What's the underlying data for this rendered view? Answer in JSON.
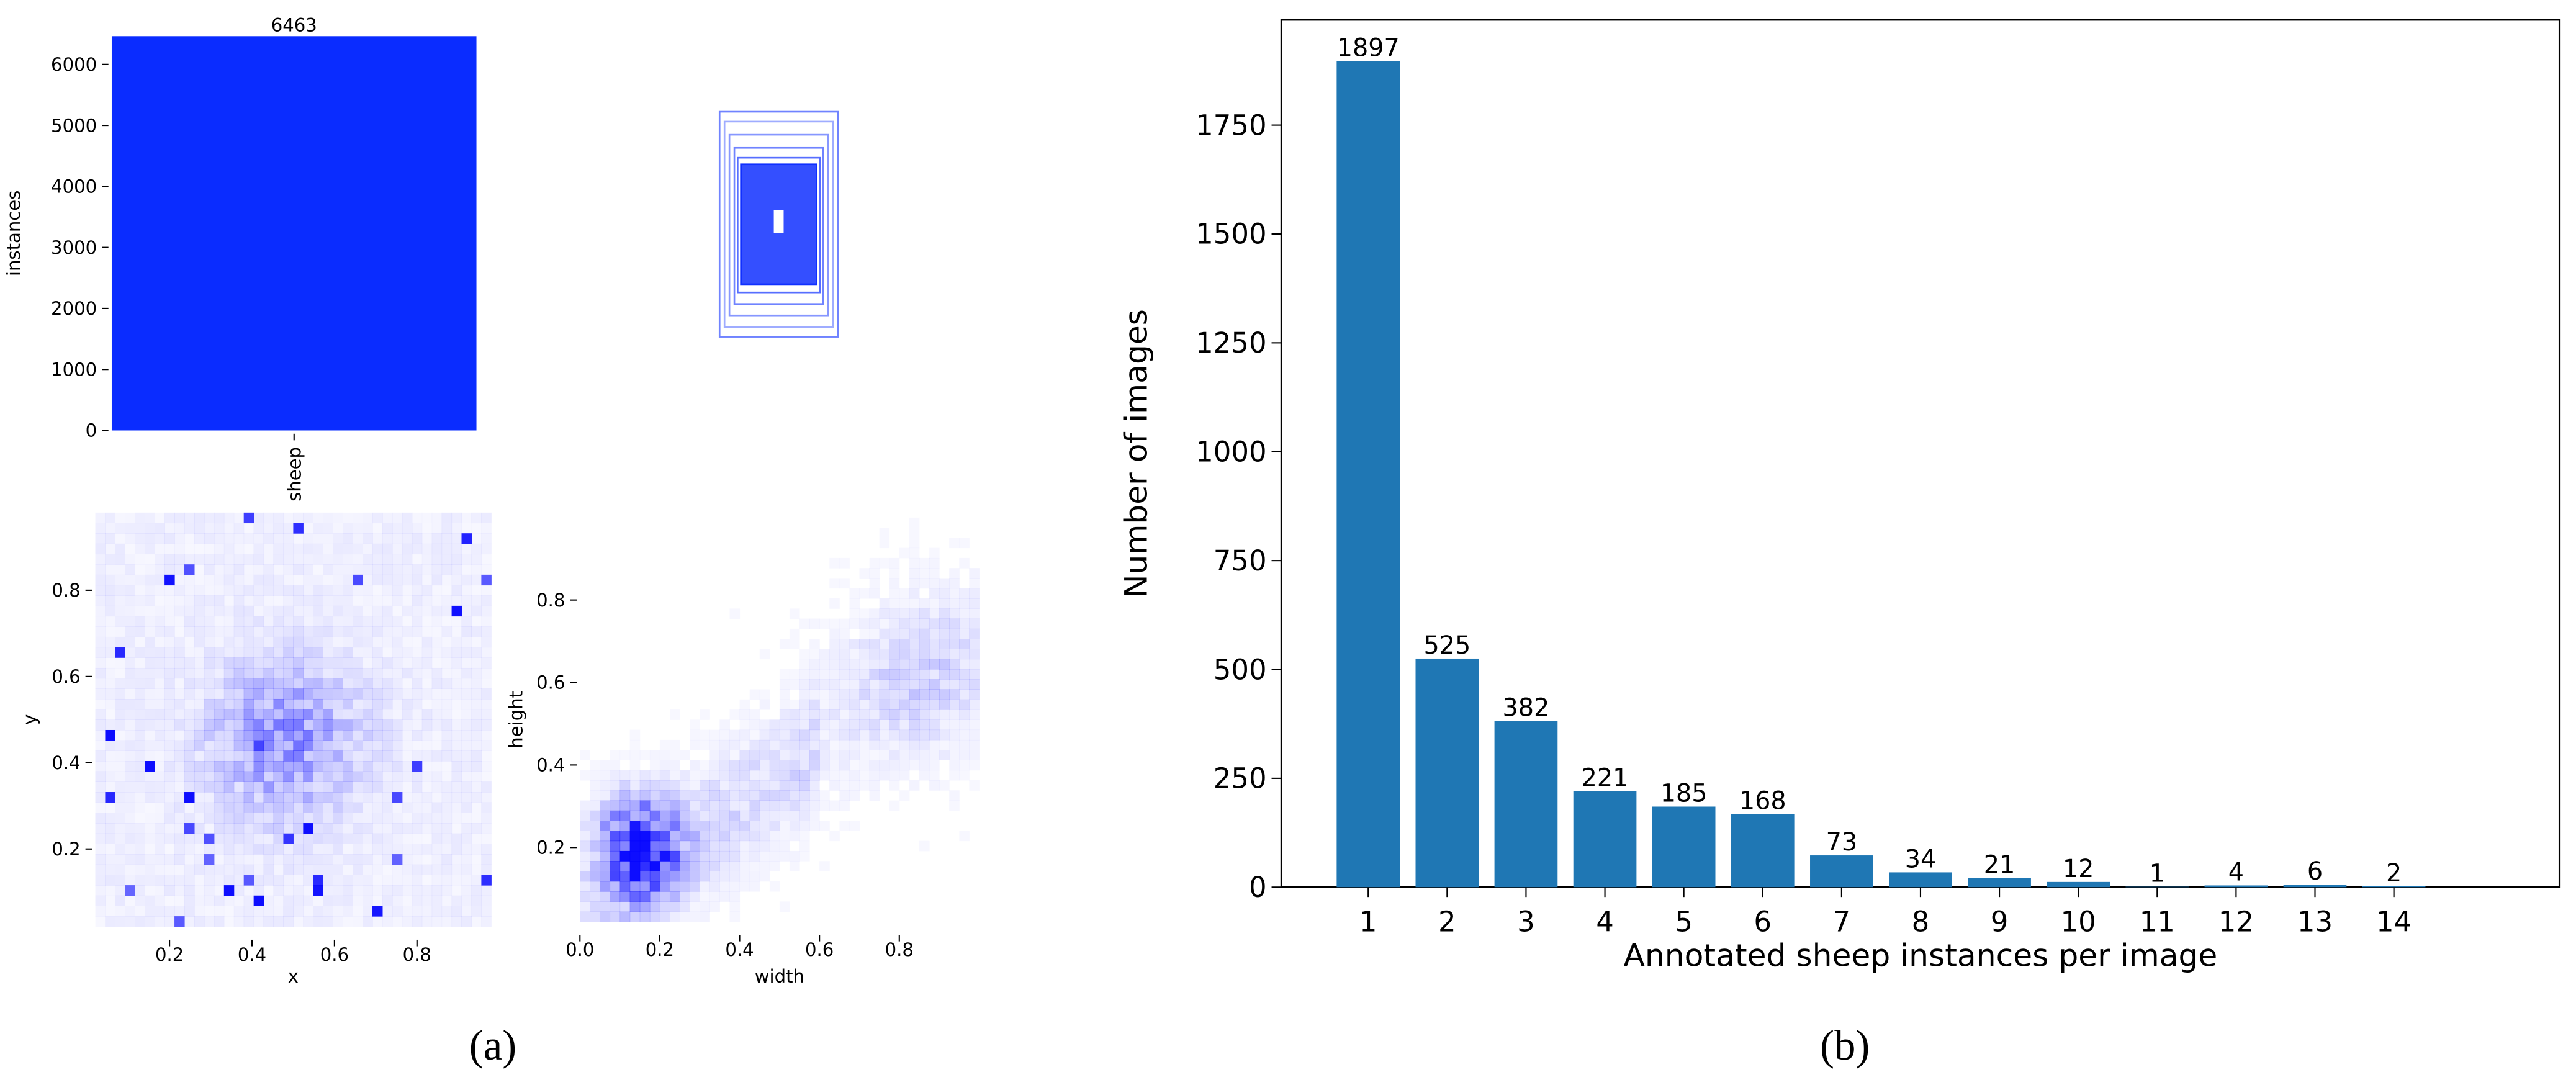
{
  "chart_data": [
    {
      "type": "bar",
      "ylabel": "instances",
      "categories": [
        "sheep"
      ],
      "values": [
        6463
      ],
      "color": "#0a2cff",
      "ylim": [
        0,
        6463
      ],
      "yticks": [
        0,
        1000,
        2000,
        3000,
        4000,
        5000,
        6000
      ],
      "rotate_x_labels": true
    },
    {
      "type": "heatmap",
      "xlabel": "x",
      "ylabel": "y",
      "color": "#0000ff",
      "xlim": [
        0.02,
        0.98
      ],
      "ylim": [
        0.02,
        0.98
      ],
      "xticks": [
        0.2,
        0.4,
        0.6,
        0.8
      ],
      "yticks": [
        0.2,
        0.4,
        0.6,
        0.8
      ]
    },
    {
      "type": "heatmap",
      "xlabel": "width",
      "ylabel": "height",
      "color": "#0000ff",
      "xlim": [
        0,
        1
      ],
      "ylim": [
        0.02,
        1
      ],
      "xticks": [
        {
          "value": 0,
          "label": "0.0"
        },
        0.2,
        0.4,
        0.6,
        0.8
      ],
      "yticks": [
        0.2,
        0.4,
        0.6,
        0.8
      ]
    },
    {
      "type": "bar",
      "xlabel": "Annotated sheep instances per image",
      "ylabel": "Number of images",
      "categories": [
        "1",
        "2",
        "3",
        "4",
        "5",
        "6",
        "7",
        "8",
        "9",
        "10",
        "11",
        "12",
        "13",
        "14"
      ],
      "values": [
        1897,
        525,
        382,
        221,
        185,
        168,
        73,
        34,
        21,
        12,
        1,
        4,
        6,
        2
      ],
      "color": "#1f77b4",
      "ylim": [
        0,
        1992
      ],
      "yticks": [
        0,
        250,
        500,
        750,
        1000,
        1250,
        1500,
        1750
      ],
      "frame": true
    }
  ],
  "panel_labels": [
    "(a)",
    "(b)"
  ]
}
